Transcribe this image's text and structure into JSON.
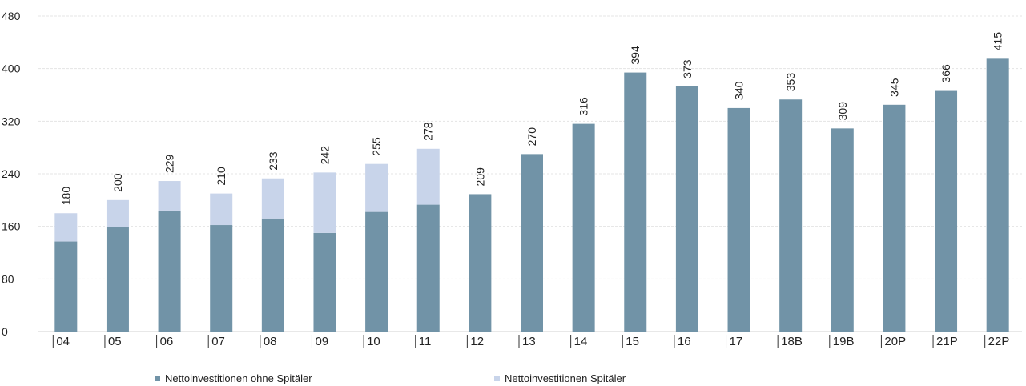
{
  "chart_data": {
    "type": "bar",
    "stacked": true,
    "categories": [
      "04",
      "05",
      "06",
      "07",
      "08",
      "09",
      "10",
      "11",
      "12",
      "13",
      "14",
      "15",
      "16",
      "17",
      "18B",
      "19B",
      "20P",
      "21P",
      "22P"
    ],
    "series": [
      {
        "name": "Nettoinvestitionen ohne Spitäler",
        "color": "#7193a7",
        "values": [
          137,
          159,
          184,
          162,
          172,
          150,
          182,
          193,
          209,
          270,
          316,
          394,
          373,
          340,
          353,
          309,
          345,
          366,
          415
        ]
      },
      {
        "name": "Nettoinvestitionen Spitäler",
        "color": "#c8d4ea",
        "values": [
          43,
          41,
          45,
          48,
          61,
          92,
          73,
          85,
          0,
          0,
          0,
          0,
          0,
          0,
          0,
          0,
          0,
          0,
          0
        ]
      }
    ],
    "totals": [
      "180",
      "200",
      "229",
      "210",
      "233",
      "242",
      "255",
      "278",
      "209",
      "270",
      "316",
      "394",
      "373",
      "340",
      "353",
      "309",
      "345",
      "366",
      "415"
    ],
    "yticks": [
      "0",
      "80",
      "160",
      "240",
      "320",
      "400",
      "480"
    ],
    "ylim": [
      0,
      480
    ],
    "grid": true,
    "legend_position": "bottom"
  }
}
